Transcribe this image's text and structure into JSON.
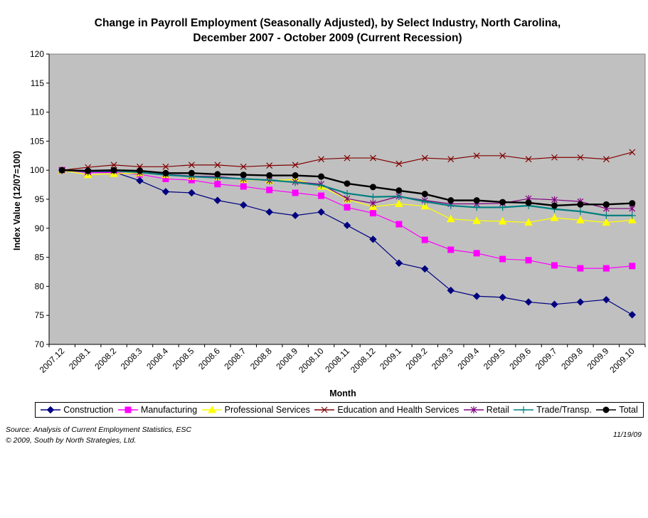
{
  "chart_data": {
    "type": "line",
    "title_line1": "Change in Payroll Employment (Seasonally Adjusted), by Select Industry, North Carolina,",
    "title_line2": "December 2007 - October 2009 (Current Recession)",
    "xlabel": "Month",
    "ylabel": "Index Value (12/07=100)",
    "ylim": [
      70,
      120
    ],
    "yticks": [
      70,
      75,
      80,
      85,
      90,
      95,
      100,
      105,
      110,
      115,
      120
    ],
    "grid": false,
    "legend_position": "bottom",
    "categories": [
      "2007.12",
      "2008.1",
      "2008.2",
      "2008.3",
      "2008.4",
      "2008.5",
      "2008.6",
      "2008.7",
      "2008.8",
      "2008.9",
      "2008.10",
      "2008.11",
      "2008.12",
      "2009.1",
      "2009.2",
      "2009.3",
      "2009.4",
      "2009.5",
      "2009.6",
      "2009.7",
      "2009.8",
      "2009.9",
      "2009.10"
    ],
    "series": [
      {
        "name": "Construction",
        "color": "#000080",
        "marker": "diamond",
        "values": [
          100.0,
          99.7,
          99.7,
          98.2,
          96.3,
          96.1,
          94.8,
          94.0,
          92.8,
          92.2,
          92.8,
          90.5,
          88.1,
          84.0,
          83.0,
          79.3,
          78.3,
          78.1,
          77.3,
          76.9,
          77.3,
          77.7,
          75.1
        ]
      },
      {
        "name": "Manufacturing",
        "color": "#ff00ff",
        "marker": "square",
        "values": [
          100.0,
          99.6,
          99.6,
          99.3,
          98.5,
          98.3,
          97.6,
          97.2,
          96.6,
          96.1,
          95.6,
          93.6,
          92.6,
          90.7,
          88.0,
          86.3,
          85.7,
          84.7,
          84.5,
          83.6,
          83.1,
          83.1,
          83.5
        ]
      },
      {
        "name": "Professional Services",
        "color": "#ffff00",
        "marker": "triangle",
        "values": [
          100.0,
          99.2,
          99.4,
          99.5,
          99.2,
          98.9,
          98.9,
          98.4,
          98.2,
          98.4,
          97.2,
          95.0,
          93.7,
          94.2,
          93.8,
          91.6,
          91.3,
          91.2,
          91.0,
          91.8,
          91.4,
          91.0,
          91.4
        ]
      },
      {
        "name": "Education and Health Services",
        "color": "#800000",
        "marker": "x",
        "values": [
          100.0,
          100.5,
          100.9,
          100.6,
          100.6,
          100.9,
          100.9,
          100.6,
          100.8,
          100.9,
          101.9,
          102.1,
          102.1,
          101.1,
          102.1,
          101.9,
          102.5,
          102.5,
          101.9,
          102.2,
          102.2,
          101.9,
          103.1
        ]
      },
      {
        "name": "Retail",
        "color": "#800080",
        "marker": "star",
        "values": [
          100.0,
          99.7,
          99.9,
          99.6,
          99.3,
          99.0,
          98.9,
          98.5,
          98.2,
          98.0,
          97.6,
          95.1,
          94.3,
          95.5,
          94.8,
          94.2,
          94.2,
          94.3,
          95.1,
          94.9,
          94.6,
          93.4,
          93.4
        ]
      },
      {
        "name": "Trade/Transp.",
        "color": "#008080",
        "marker": "plus",
        "values": [
          100.0,
          99.8,
          99.9,
          99.6,
          99.2,
          98.9,
          98.7,
          98.5,
          98.3,
          97.9,
          97.4,
          96.0,
          95.4,
          95.5,
          94.6,
          93.9,
          93.6,
          93.6,
          93.9,
          93.3,
          92.9,
          92.2,
          92.2
        ]
      },
      {
        "name": "Total",
        "color": "#000000",
        "marker": "circle",
        "values": [
          100.0,
          99.9,
          100.0,
          99.9,
          99.5,
          99.5,
          99.3,
          99.2,
          99.1,
          99.1,
          98.9,
          97.7,
          97.1,
          96.5,
          95.9,
          94.8,
          94.8,
          94.5,
          94.4,
          93.9,
          94.1,
          94.1,
          94.3
        ]
      }
    ]
  },
  "footer": {
    "source": "Source: Analysis of Current Employment Statistics, ESC",
    "copyright": "© 2009, South by North Strategies, Ltd.",
    "date": "11/19/09"
  }
}
